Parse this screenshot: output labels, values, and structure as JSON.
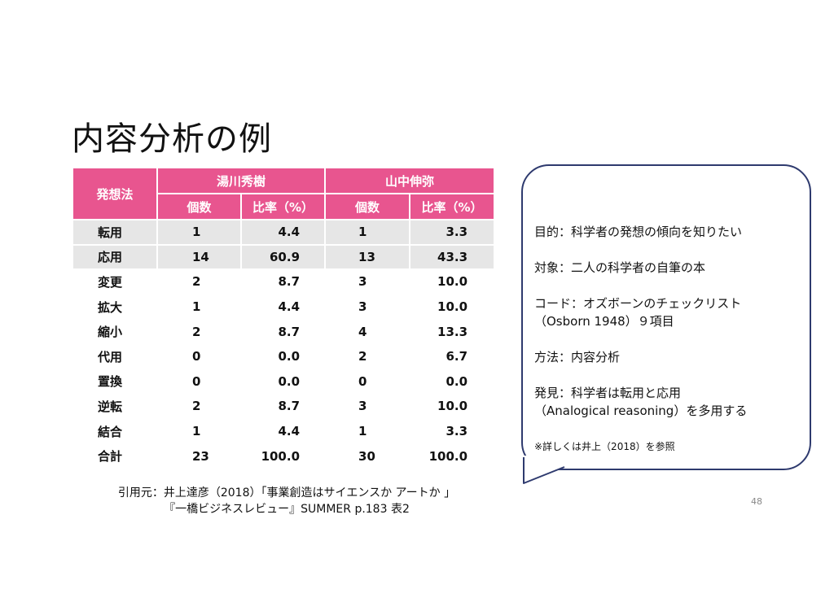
{
  "title": "内容分析の例",
  "table": {
    "header_col": "発想法",
    "group1": "湯川秀樹",
    "group2": "山中伸弥",
    "sub_count": "個数",
    "sub_ratio": "比率（%）",
    "rows": [
      {
        "label": "転用",
        "c1": "1",
        "r1": "4.4",
        "c2": "1",
        "r2": "3.3"
      },
      {
        "label": "応用",
        "c1": "14",
        "r1": "60.9",
        "c2": "13",
        "r2": "43.3"
      },
      {
        "label": "変更",
        "c1": "2",
        "r1": "8.7",
        "c2": "3",
        "r2": "10.0"
      },
      {
        "label": "拡大",
        "c1": "1",
        "r1": "4.4",
        "c2": "3",
        "r2": "10.0"
      },
      {
        "label": "縮小",
        "c1": "2",
        "r1": "8.7",
        "c2": "4",
        "r2": "13.3"
      },
      {
        "label": "代用",
        "c1": "0",
        "r1": "0.0",
        "c2": "2",
        "r2": "6.7"
      },
      {
        "label": "置換",
        "c1": "0",
        "r1": "0.0",
        "c2": "0",
        "r2": "0.0"
      },
      {
        "label": "逆転",
        "c1": "2",
        "r1": "8.7",
        "c2": "3",
        "r2": "10.0"
      },
      {
        "label": "結合",
        "c1": "1",
        "r1": "4.4",
        "c2": "1",
        "r2": "3.3"
      },
      {
        "label": "合計",
        "c1": "23",
        "r1": "100.0",
        "c2": "30",
        "r2": "100.0"
      }
    ]
  },
  "source": {
    "line1": "引用元：井上達彦（2018）「事業創造はサイエンスか アートか 」",
    "line2": "『一橋ビジネスレビュー』SUMMER p.183 表2"
  },
  "notes": {
    "purpose": "目的：科学者の発想の傾向を知りたい",
    "target": "対象：二人の科学者の自筆の本",
    "code1": "コード：オズボーンのチェックリスト",
    "code2": "（Osborn 1948）９項目",
    "method": "方法：内容分析",
    "finding1": "発見：科学者は転用と応用",
    "finding2": "（Analogical reasoning）を多用する",
    "ref": "※詳しくは井上（2018）を参照"
  },
  "page_number": "48",
  "colors": {
    "header": "#e8558f",
    "shade": "#e6e6e6",
    "bubble_border": "#2e3a6e"
  }
}
